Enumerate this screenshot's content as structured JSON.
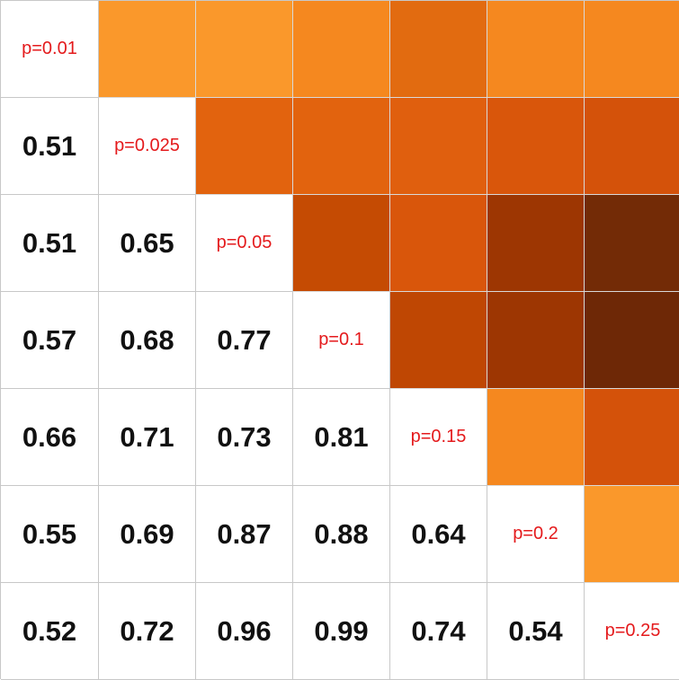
{
  "chart_data": {
    "type": "heatmap",
    "title": "",
    "xlabel": "",
    "ylabel": "",
    "diagonal_labels": [
      "p=0.01",
      "p=0.025",
      "p=0.05",
      "p=0.1",
      "p=0.15",
      "p=0.2",
      "p=0.25"
    ],
    "lower_triangle_values": [
      [],
      [
        0.51
      ],
      [
        0.51,
        0.65
      ],
      [
        0.57,
        0.68,
        0.77
      ],
      [
        0.66,
        0.71,
        0.73,
        0.81
      ],
      [
        0.55,
        0.69,
        0.87,
        0.88,
        0.64
      ],
      [
        0.52,
        0.72,
        0.96,
        0.99,
        0.74,
        0.54
      ]
    ],
    "upper_triangle_colors": [
      [
        "#fa982b",
        "#fa982b",
        "#f5881f",
        "#e26b10",
        "#f5881f",
        "#f5881f"
      ],
      [
        "#e2630e",
        "#e2630e",
        "#e05f0e",
        "#d9560b",
        "#d4520a"
      ],
      [
        "#c54b03",
        "#d9560b",
        "#9d3602",
        "#732b06"
      ],
      [
        "#bf4703",
        "#9d3602",
        "#6e2806"
      ],
      [
        "#f5881f",
        "#d4520a"
      ],
      [
        "#fa982b"
      ]
    ],
    "colors": {
      "diagonal_text": "#e41a1c",
      "value_text": "#111111",
      "grid_line": "#c8c8c8"
    }
  }
}
